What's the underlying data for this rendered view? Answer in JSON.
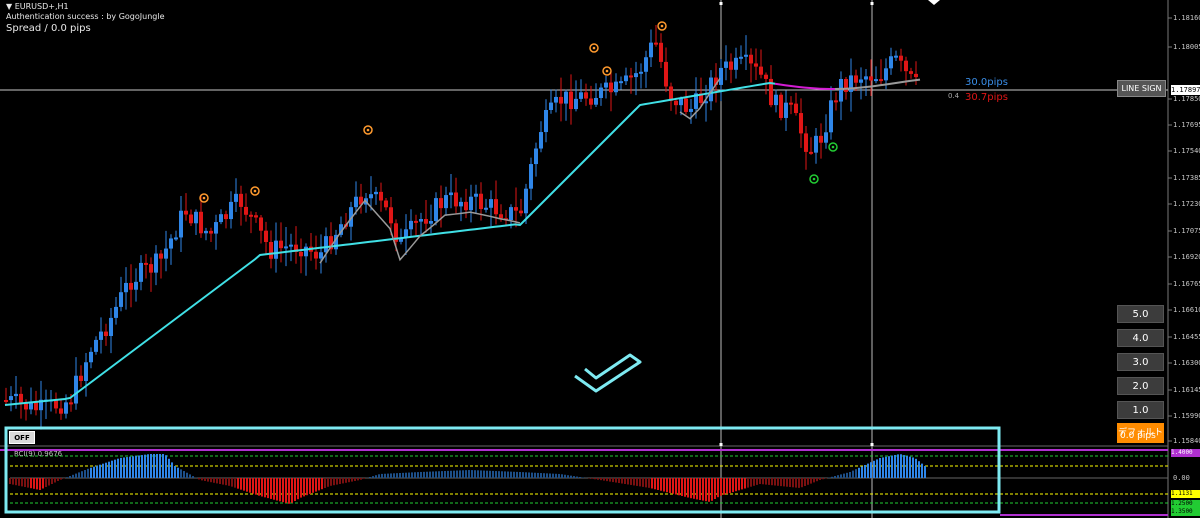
{
  "header": {
    "symbol": "EURUSD+,H1",
    "auth_status": "Authentication success : by GogoJungle",
    "spread": "Spread / 0.0 pips"
  },
  "price_axis": {
    "labels": [
      "1.18160",
      "1.18005",
      "1.17850",
      "1.17695",
      "1.17540",
      "1.17385",
      "1.17230",
      "1.17075",
      "1.16920",
      "1.16765",
      "1.16610",
      "1.16455",
      "1.16300",
      "1.16145",
      "1.15990",
      "1.15840"
    ],
    "current_price": "1.17897"
  },
  "signals": {
    "line_sign_label": "LINE SIGN",
    "pips_up": "30.0pips",
    "pips_down": "30.7pips",
    "small_value": "0.4",
    "pips_overlay": "0.0 pips"
  },
  "level_buttons": [
    "5.0",
    "4.0",
    "3.0",
    "2.0",
    "1.0"
  ],
  "default_button": "デフォルト",
  "toggle_off": "OFF",
  "subwindow": {
    "title": "RCI(9) 0.9676",
    "zero_label": "0.00",
    "tag_yellow": "1.1131",
    "tag_green_top": "1.2500",
    "tag_green_bottom": "1.3500",
    "tag_purple_top": "1.4000"
  },
  "colors": {
    "bull": "#2f86e8",
    "bear": "#e01616",
    "ma_fast": "#40e0e6",
    "ma_slow": "#9a9a9a",
    "magenta": "#d41cd4",
    "highlight_box": "#7eeaf2",
    "signal_up": "#ff9a2e",
    "signal_down": "#22cc33"
  }
}
